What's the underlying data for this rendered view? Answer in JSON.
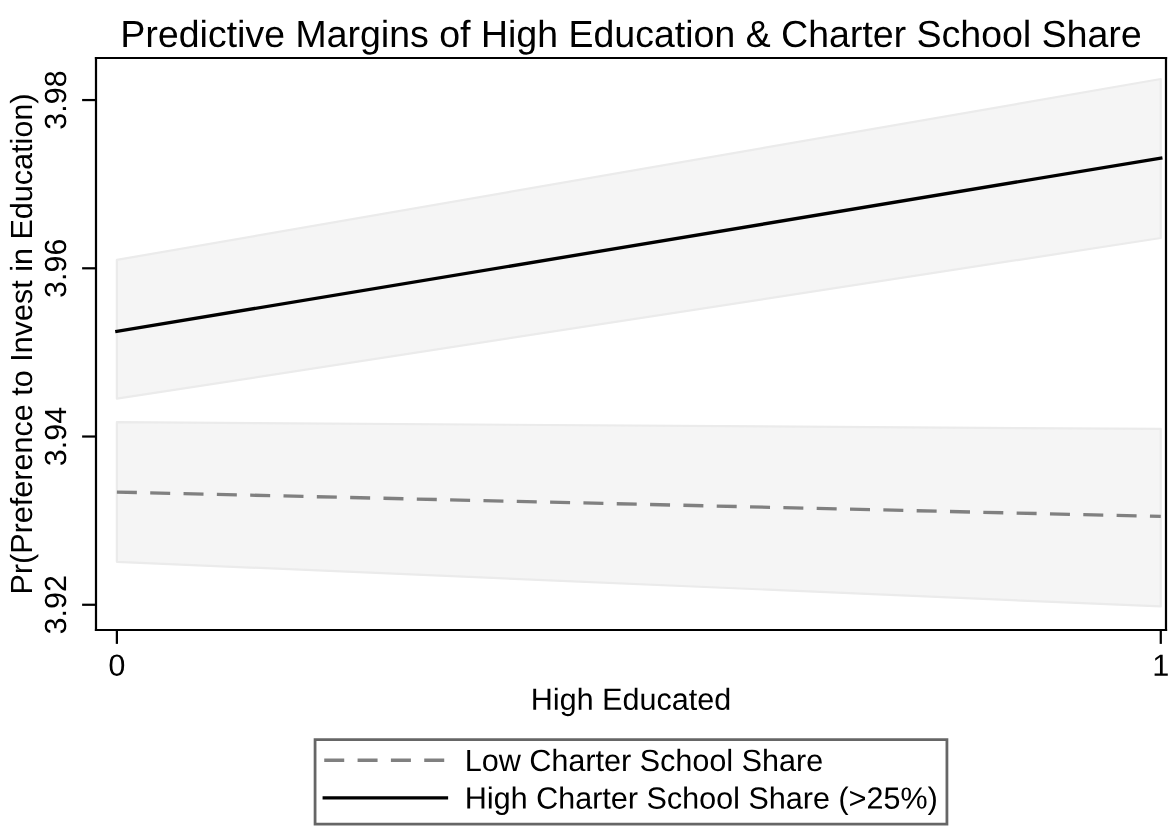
{
  "chart_data": {
    "type": "line",
    "title": "Predictive Margins of High Education & Charter School Share",
    "xlabel": "High Educated",
    "ylabel": "Pr(Preference to Invest in Education)",
    "x": [
      0,
      1
    ],
    "series": [
      {
        "name": "Low Charter School Share",
        "color": "#808080",
        "line_style": "dashed",
        "values": [
          3.9334,
          3.9305
        ],
        "lower": [
          3.9251,
          3.9198
        ],
        "upper": [
          3.9417,
          3.9409
        ]
      },
      {
        "name": "High Charter School Share (>25%)",
        "color": "#000000",
        "line_style": "solid",
        "values": [
          3.9525,
          3.9731
        ],
        "lower": [
          3.9445,
          3.9636
        ],
        "upper": [
          3.961,
          3.9825
        ]
      }
    ],
    "xlim": [
      -0.02,
      1.005
    ],
    "xticks": [
      0,
      1
    ],
    "ylim": [
      3.917,
      3.985
    ],
    "yticks": [
      3.92,
      3.94,
      3.96,
      3.98
    ],
    "grid": false,
    "legend": "bottom",
    "marker": "none"
  }
}
